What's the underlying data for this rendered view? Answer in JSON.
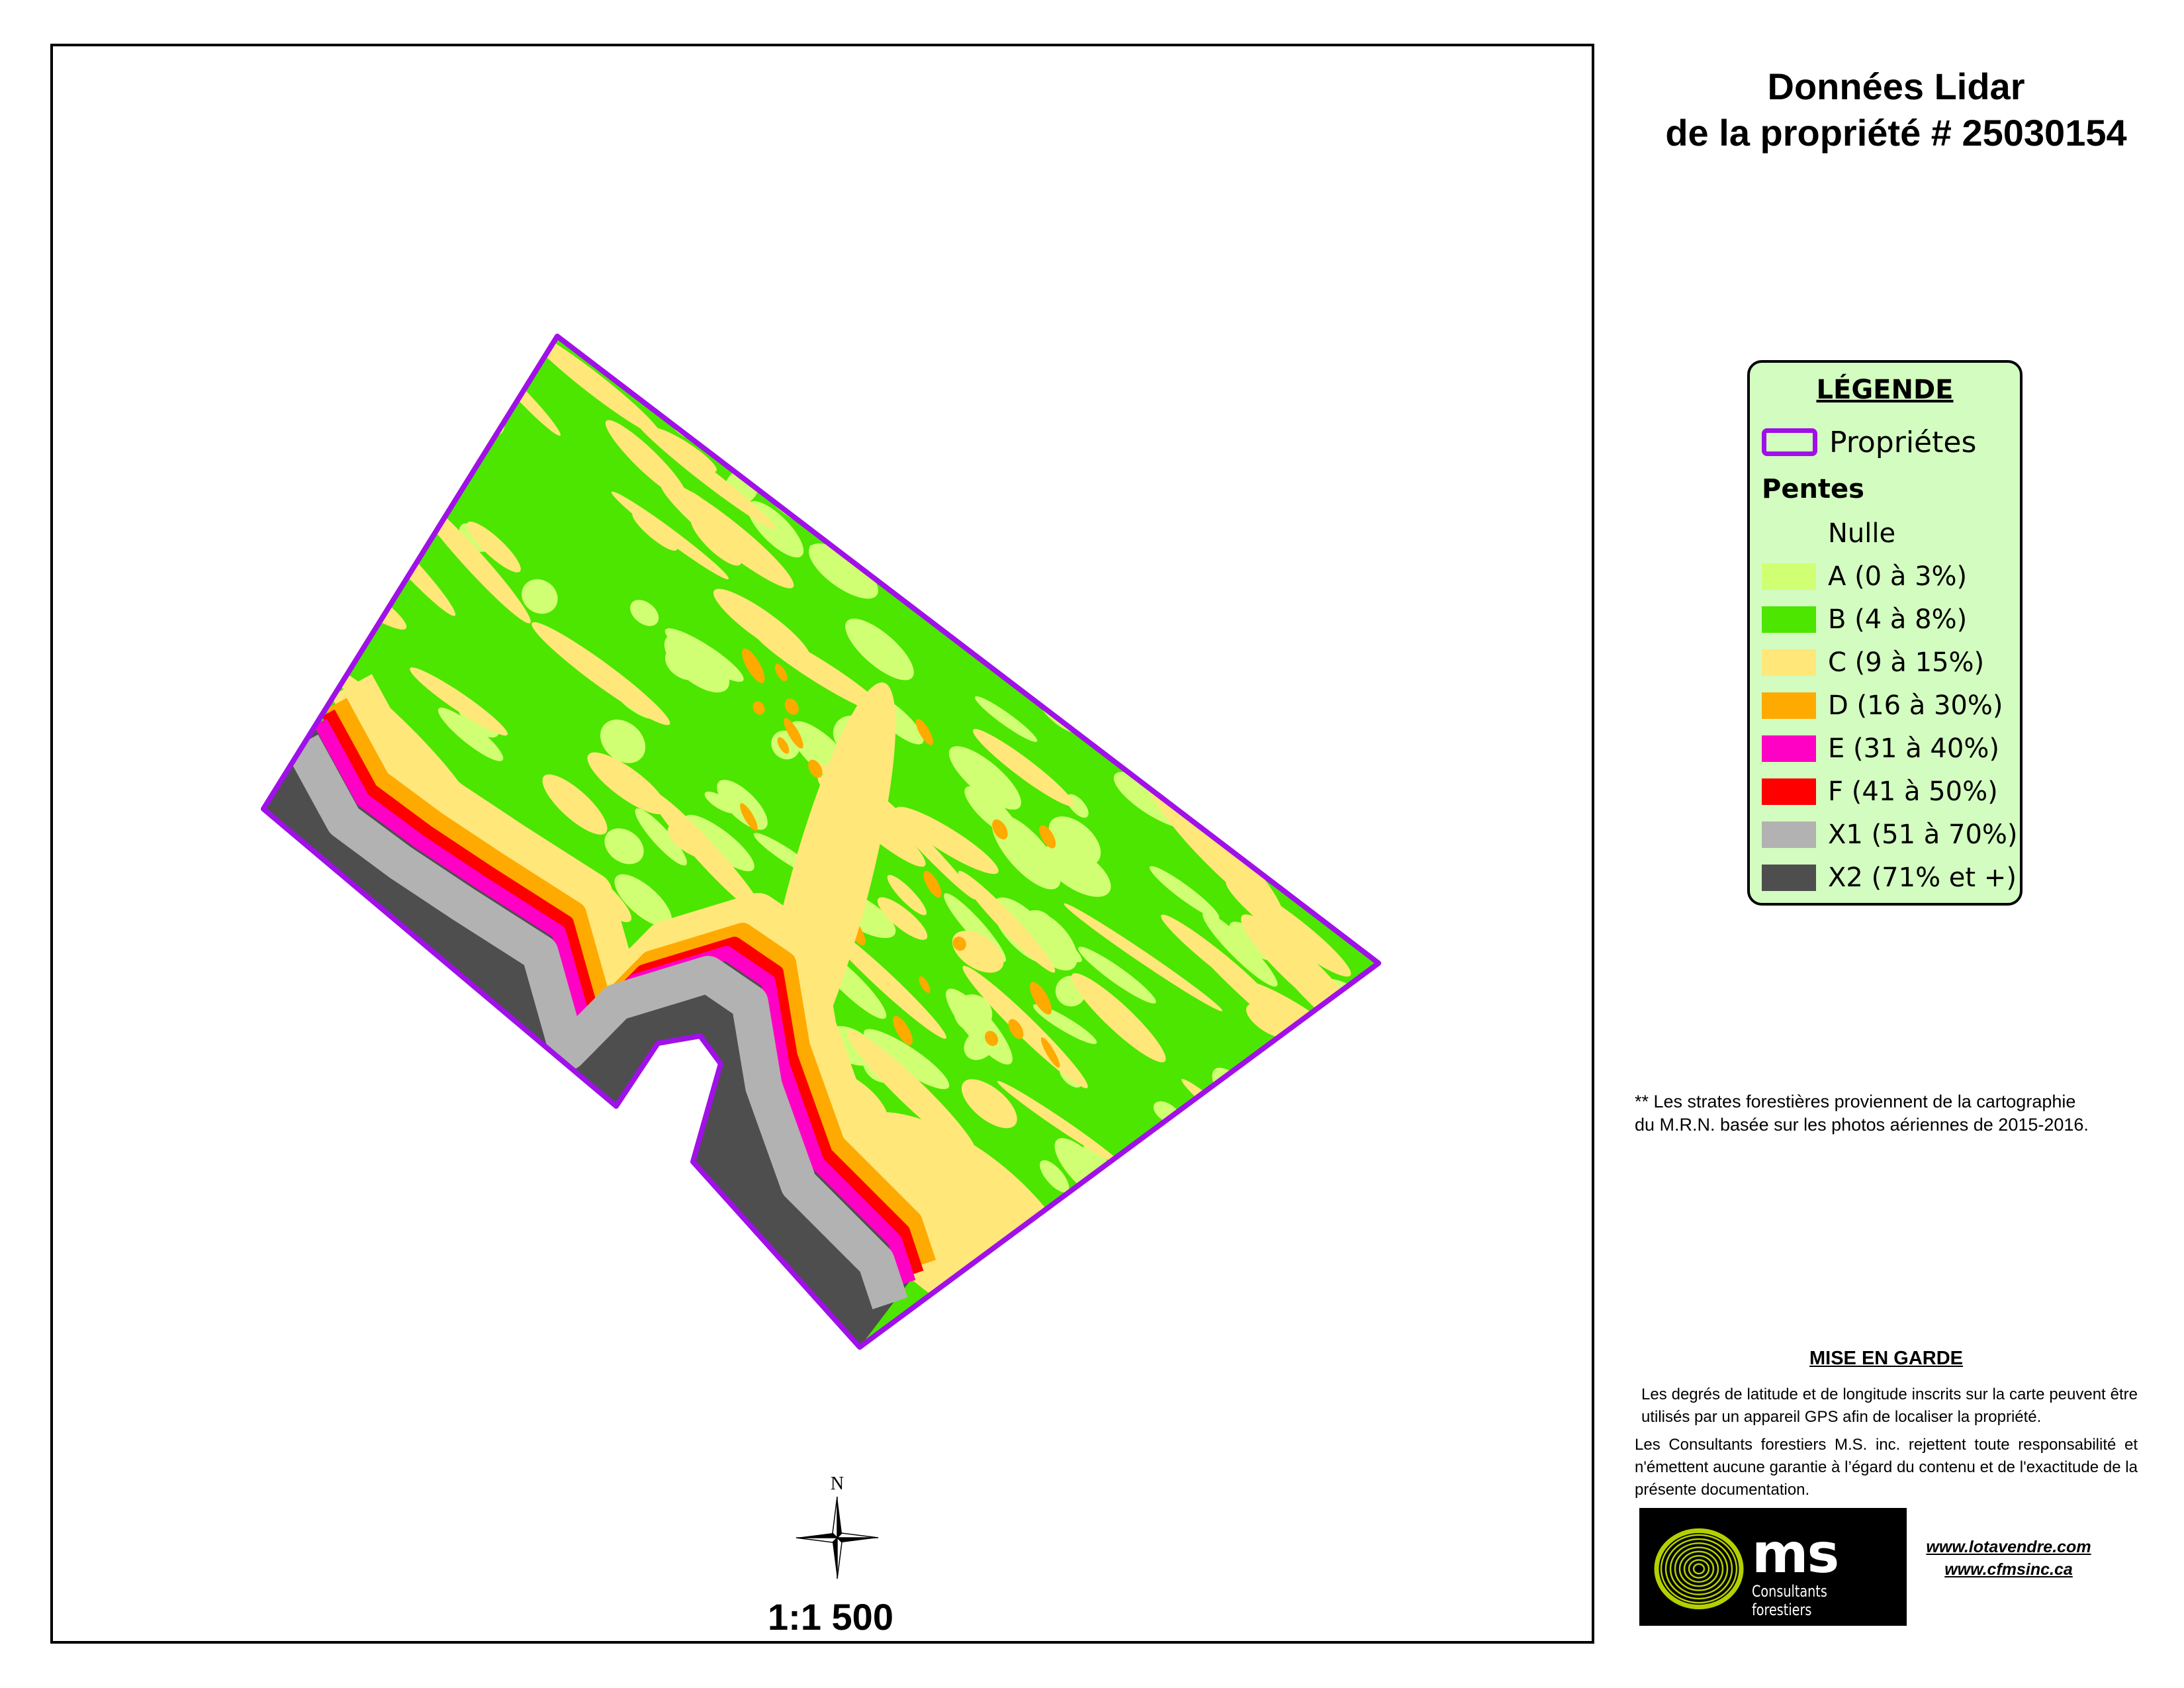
{
  "title": {
    "line1": "Données Lidar",
    "line2": "de la propriété # 25030154"
  },
  "legend": {
    "title": "LÉGENDE",
    "property_label": "Propriétes",
    "property_color": "#a010e8",
    "slopes_title": "Pentes",
    "items": [
      {
        "label": "Nulle",
        "color": "#d3fcc0"
      },
      {
        "label": "A (0 à 3%)",
        "color": "#d1ff73"
      },
      {
        "label": "B (4 à 8%)",
        "color": "#4ce600"
      },
      {
        "label": "C (9 à 15%)",
        "color": "#ffe77a"
      },
      {
        "label": "D (16 à 30%)",
        "color": "#ffaa00"
      },
      {
        "label": "E (31 à 40%)",
        "color": "#ff00c5"
      },
      {
        "label": "F (41 à 50%)",
        "color": "#ff0000"
      },
      {
        "label": "X1 (51 à 70%)",
        "color": "#b2b2b2"
      },
      {
        "label": "X2 (71% et +)",
        "color": "#4e4e4e"
      }
    ]
  },
  "note": {
    "line1": "** Les strates forestières proviennent de la cartographie",
    "line2": "du M.R.N.  basée sur les photos aériennes  de 2015-2016."
  },
  "warning": {
    "title": "MISE EN GARDE",
    "paragraph1": "Les degrés de latitude et de longitude inscrits sur la carte peuvent être utilisés par un appareil GPS afin de localiser la propriété.",
    "paragraph2": "Les Consultants forestiers M.S. inc. rejettent toute responsabilité et n'émettent aucune garantie à l’égard du contenu et de l'exactitude de la présente documentation."
  },
  "logo": {
    "text": "ms",
    "subtitle": "Consultants forestiers",
    "ring_color": "#b5d000"
  },
  "links": [
    "www.lotavendre.com",
    "www.cfmsinc.ca"
  ],
  "map": {
    "scale": "1:1 500",
    "north_label": "N",
    "north_icon": "compass-rose-icon"
  }
}
